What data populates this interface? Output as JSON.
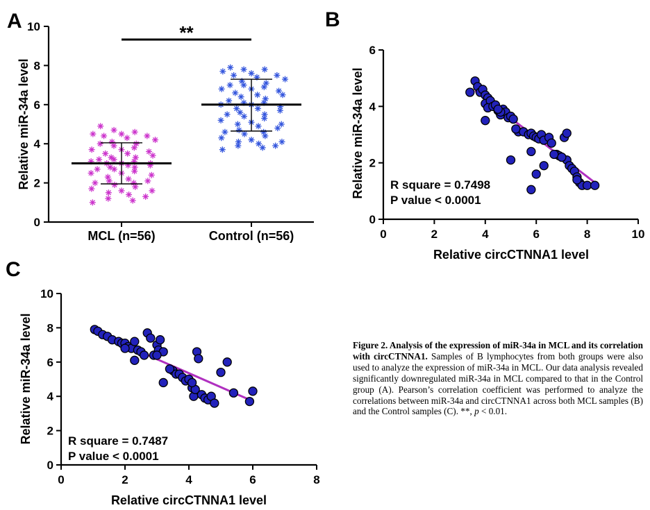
{
  "chart_data": [
    {
      "panel": "A",
      "type": "scatter",
      "subtype": "dot-plot-with-mean-sd",
      "ylabel": "Relative miR-34a level",
      "xlabel": "",
      "ylim": [
        0,
        10
      ],
      "yticks": [
        0,
        2,
        4,
        6,
        8,
        10
      ],
      "categories": [
        "MCL (n=56)",
        "Control (n=56)"
      ],
      "significance": "**",
      "series": [
        {
          "name": "MCL (n=56)",
          "color": "#CC33CC",
          "marker": "asterisk",
          "mean": 3.0,
          "sd_low": 1.95,
          "sd_high": 4.05,
          "values": [
            4.9,
            4.7,
            4.6,
            4.5,
            4.5,
            4.4,
            4.4,
            4.3,
            4.2,
            4.1,
            4.0,
            4.0,
            3.9,
            3.8,
            3.7,
            3.7,
            3.6,
            3.5,
            3.5,
            3.4,
            3.3,
            3.3,
            3.2,
            3.2,
            3.1,
            3.1,
            3.0,
            3.0,
            3.0,
            2.9,
            2.9,
            2.8,
            2.8,
            2.7,
            2.7,
            2.6,
            2.5,
            2.5,
            2.4,
            2.3,
            2.2,
            2.1,
            2.1,
            2.0,
            2.0,
            1.9,
            1.8,
            1.7,
            1.6,
            1.6,
            1.5,
            1.4,
            1.3,
            1.2,
            1.1,
            1.0
          ]
        },
        {
          "name": "Control (n=56)",
          "color": "#3355DD",
          "marker": "asterisk",
          "mean": 6.0,
          "sd_low": 4.65,
          "sd_high": 7.3,
          "values": [
            7.9,
            7.8,
            7.8,
            7.7,
            7.6,
            7.5,
            7.5,
            7.4,
            7.3,
            7.2,
            7.1,
            7.0,
            7.0,
            6.9,
            6.8,
            6.8,
            6.7,
            6.6,
            6.5,
            6.5,
            6.4,
            6.3,
            6.2,
            6.1,
            6.1,
            6.0,
            6.0,
            5.9,
            5.8,
            5.8,
            5.7,
            5.6,
            5.5,
            5.5,
            5.4,
            5.3,
            5.2,
            5.1,
            5.0,
            5.0,
            4.9,
            4.8,
            4.7,
            4.6,
            4.6,
            4.5,
            4.4,
            4.3,
            4.2,
            4.1,
            4.1,
            4.0,
            3.9,
            3.9,
            3.8,
            3.7
          ]
        }
      ]
    },
    {
      "panel": "B",
      "type": "scatter",
      "xlabel": "Relative circCTNNA1 level",
      "ylabel": "Relative miR-34a level",
      "xlim": [
        0,
        10
      ],
      "ylim": [
        0,
        6
      ],
      "xticks": [
        0,
        2,
        4,
        6,
        8,
        10
      ],
      "yticks": [
        0,
        2,
        4,
        6
      ],
      "point_color": "#2222BB",
      "fit_color": "#B030C0",
      "fit_line": {
        "x": [
          3.6,
          8.3
        ],
        "y": [
          4.55,
          1.3
        ]
      },
      "annotations": [
        "R square = 0.7498",
        "P value < 0.0001"
      ],
      "points": [
        [
          3.4,
          4.5
        ],
        [
          3.6,
          4.9
        ],
        [
          3.7,
          4.7
        ],
        [
          3.8,
          4.5
        ],
        [
          3.9,
          4.6
        ],
        [
          4.0,
          4.4
        ],
        [
          4.1,
          4.3
        ],
        [
          4.0,
          4.1
        ],
        [
          4.2,
          4.2
        ],
        [
          4.1,
          3.95
        ],
        [
          4.3,
          4.0
        ],
        [
          4.4,
          4.05
        ],
        [
          4.5,
          3.85
        ],
        [
          4.6,
          3.7
        ],
        [
          4.7,
          3.9
        ],
        [
          4.8,
          3.8
        ],
        [
          4.9,
          3.6
        ],
        [
          5.0,
          3.65
        ],
        [
          5.1,
          3.55
        ],
        [
          5.3,
          3.1
        ],
        [
          5.2,
          3.2
        ],
        [
          5.5,
          3.1
        ],
        [
          5.7,
          3.0
        ],
        [
          5.8,
          3.05
        ],
        [
          5.9,
          2.95
        ],
        [
          6.0,
          2.9
        ],
        [
          6.1,
          2.85
        ],
        [
          6.2,
          3.0
        ],
        [
          6.3,
          2.8
        ],
        [
          6.5,
          2.9
        ],
        [
          6.6,
          2.7
        ],
        [
          6.8,
          2.3
        ],
        [
          6.9,
          2.25
        ],
        [
          7.0,
          2.2
        ],
        [
          7.1,
          2.9
        ],
        [
          7.2,
          3.05
        ],
        [
          7.2,
          2.1
        ],
        [
          7.3,
          1.9
        ],
        [
          7.4,
          1.8
        ],
        [
          7.5,
          1.7
        ],
        [
          7.6,
          1.5
        ],
        [
          7.7,
          1.3
        ],
        [
          7.8,
          1.2
        ],
        [
          8.0,
          1.2
        ],
        [
          8.3,
          1.2
        ],
        [
          4.0,
          3.5
        ],
        [
          5.0,
          2.1
        ],
        [
          5.8,
          2.4
        ],
        [
          6.0,
          1.6
        ],
        [
          6.3,
          1.9
        ],
        [
          5.8,
          1.05
        ],
        [
          4.6,
          3.8
        ],
        [
          7.6,
          1.4
        ],
        [
          6.7,
          2.3
        ],
        [
          4.5,
          3.9
        ],
        [
          7.0,
          2.2
        ]
      ]
    },
    {
      "panel": "C",
      "type": "scatter",
      "xlabel": "Relative circCTNNA1 level",
      "ylabel": "Relative miR-34a level",
      "xlim": [
        0,
        8
      ],
      "ylim": [
        0,
        10
      ],
      "xticks": [
        0,
        2,
        4,
        6,
        8
      ],
      "yticks": [
        0,
        2,
        4,
        6,
        8,
        10
      ],
      "point_color": "#2222BB",
      "fit_color": "#B030C0",
      "fit_line": {
        "x": [
          1.0,
          5.9
        ],
        "y": [
          7.8,
          3.8
        ]
      },
      "annotations": [
        "R square = 0.7487",
        "P value < 0.0001"
      ],
      "points": [
        [
          1.05,
          7.9
        ],
        [
          1.15,
          7.8
        ],
        [
          1.3,
          7.6
        ],
        [
          1.45,
          7.5
        ],
        [
          1.6,
          7.3
        ],
        [
          1.8,
          7.2
        ],
        [
          1.9,
          7.1
        ],
        [
          2.0,
          7.1
        ],
        [
          2.1,
          6.9
        ],
        [
          2.2,
          6.8
        ],
        [
          2.3,
          7.2
        ],
        [
          2.4,
          6.7
        ],
        [
          2.5,
          6.6
        ],
        [
          2.6,
          6.4
        ],
        [
          2.7,
          7.7
        ],
        [
          2.8,
          7.4
        ],
        [
          2.9,
          6.4
        ],
        [
          3.0,
          7.0
        ],
        [
          3.05,
          6.7
        ],
        [
          3.1,
          7.3
        ],
        [
          3.2,
          6.6
        ],
        [
          2.3,
          6.1
        ],
        [
          3.2,
          4.8
        ],
        [
          3.5,
          5.5
        ],
        [
          3.6,
          5.3
        ],
        [
          3.7,
          5.3
        ],
        [
          3.8,
          5.1
        ],
        [
          3.9,
          4.9
        ],
        [
          4.0,
          5.0
        ],
        [
          4.1,
          4.5
        ],
        [
          4.15,
          4.0
        ],
        [
          4.2,
          4.4
        ],
        [
          4.25,
          6.6
        ],
        [
          4.3,
          6.2
        ],
        [
          4.4,
          4.1
        ],
        [
          4.5,
          3.9
        ],
        [
          4.6,
          3.8
        ],
        [
          4.7,
          4.0
        ],
        [
          4.8,
          3.6
        ],
        [
          5.0,
          5.4
        ],
        [
          5.2,
          6.0
        ],
        [
          5.4,
          4.2
        ],
        [
          5.9,
          3.7
        ],
        [
          6.0,
          4.3
        ],
        [
          2.0,
          6.8
        ],
        [
          3.0,
          6.4
        ],
        [
          3.4,
          5.6
        ],
        [
          4.1,
          4.8
        ]
      ]
    }
  ],
  "panel_labels": {
    "a": "A",
    "b": "B",
    "c": "C"
  },
  "caption": {
    "lead": "Figure 2. Analysis of the expression of miR-34a in MCL and its correlation with circCTNNA1.",
    "body": " Samples of B lymphocytes from both groups were also used to analyze the expression of miR-34a in MCL. Our data analysis revealed significantly downregulated miR-34a in MCL compared to that in the Control group (A). Pearson’s correlation coefficient was performed to analyze the correlations between miR-34a and circCTNNA1 across both MCL samples (B) and the Control samples (C). **, ",
    "p_symbol": "p",
    "tail": " < 0.01."
  }
}
